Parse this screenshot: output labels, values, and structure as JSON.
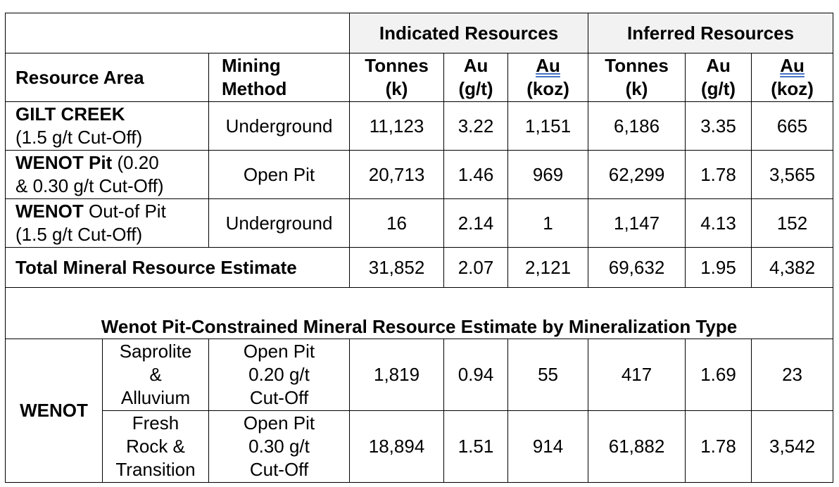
{
  "header": {
    "indicated": "Indicated Resources",
    "inferred": "Inferred Resources"
  },
  "columns": {
    "resource_area": "Resource Area",
    "mining_method_1": "Mining",
    "mining_method_2": "Method",
    "tonnes_1": "Tonnes",
    "tonnes_2": "(k)",
    "au_gt_1": "Au",
    "au_gt_2": "(g/t)",
    "au_koz_1": "Au",
    "au_koz_2": "(koz)"
  },
  "rows": [
    {
      "area_bold": "GILT CREEK",
      "area_rest": "",
      "area_line2": "(1.5 g/t Cut-Off)",
      "method": "Underground",
      "ind_tonnes": "11,123",
      "ind_au_gt": "3.22",
      "ind_au_koz": "1,151",
      "inf_tonnes": "6,186",
      "inf_au_gt": "3.35",
      "inf_au_koz": "665"
    },
    {
      "area_bold": "WENOT Pit",
      "area_rest": " (0.20",
      "area_line2": "& 0.30 g/t Cut-Off)",
      "method": "Open Pit",
      "ind_tonnes": "20,713",
      "ind_au_gt": "1.46",
      "ind_au_koz": "969",
      "inf_tonnes": "62,299",
      "inf_au_gt": "1.78",
      "inf_au_koz": "3,565"
    },
    {
      "area_bold": "WENOT",
      "area_rest": " Out-of Pit",
      "area_line2": "(1.5 g/t Cut-Off)",
      "method": "Underground",
      "ind_tonnes": "16",
      "ind_au_gt": "2.14",
      "ind_au_koz": "1",
      "inf_tonnes": "1,147",
      "inf_au_gt": "4.13",
      "inf_au_koz": "152"
    }
  ],
  "total": {
    "label": "Total Mineral Resource Estimate",
    "ind_tonnes": "31,852",
    "ind_au_gt": "2.07",
    "ind_au_koz": "2,121",
    "inf_tonnes": "69,632",
    "inf_au_gt": "1.95",
    "inf_au_koz": "4,382"
  },
  "subtitle": "Wenot Pit-Constrained Mineral Resource Estimate by Mineralization Type",
  "wenot": {
    "label": "WENOT",
    "rows": [
      {
        "type_1": "Saprolite",
        "type_2": "&",
        "type_3": "Alluvium",
        "method_1": "Open Pit",
        "method_2": "0.20 g/t",
        "method_3": "Cut-Off",
        "ind_tonnes": "1,819",
        "ind_au_gt": "0.94",
        "ind_au_koz": "55",
        "inf_tonnes": "417",
        "inf_au_gt": "1.69",
        "inf_au_koz": "23"
      },
      {
        "type_1": "Fresh",
        "type_2": "Rock &",
        "type_3": "Transition",
        "method_1": "Open Pit",
        "method_2": "0.30 g/t",
        "method_3": "Cut-Off",
        "ind_tonnes": "18,894",
        "ind_au_gt": "1.51",
        "ind_au_koz": "914",
        "inf_tonnes": "61,882",
        "inf_au_gt": "1.78",
        "inf_au_koz": "3,542"
      }
    ]
  }
}
